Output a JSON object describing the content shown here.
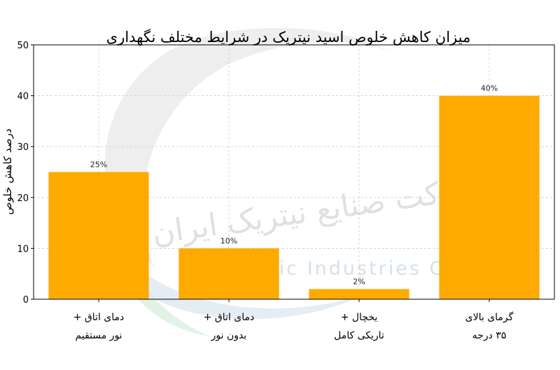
{
  "chart_data": {
    "type": "bar",
    "title": "میزان کاهش خلوص اسید نیتریک در شرایط مختلف نگهداری",
    "ylabel": "درصد کاهش خلوص",
    "xlabel": "",
    "categories": [
      [
        "دمای اتاق +",
        "نور مستقیم"
      ],
      [
        "دمای اتاق +",
        "بدون نور"
      ],
      [
        "یخچال +",
        "تاریکی کامل"
      ],
      [
        "گرمای بالای",
        "۳۵ درجه"
      ]
    ],
    "values": [
      25,
      10,
      2,
      40
    ],
    "data_labels": [
      "25%",
      "10%",
      "2%",
      "40%"
    ],
    "ylim": [
      0,
      50
    ],
    "yticks": [
      0,
      10,
      20,
      30,
      40,
      50
    ],
    "grid": true,
    "bar_color": "#FFAA00"
  },
  "watermark": {
    "persian": "شرکت صنایع نیتریک ایران",
    "english": "Iran Nitric Industries Co"
  }
}
